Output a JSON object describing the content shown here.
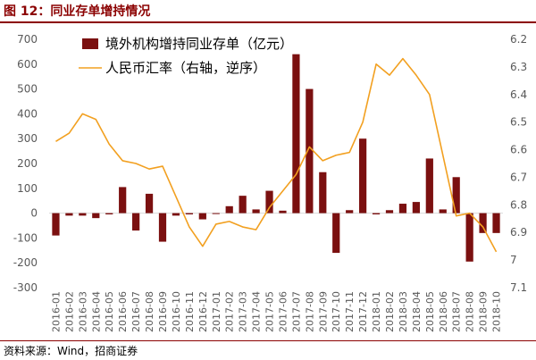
{
  "figure": {
    "title": "图 12：同业存单增持情况",
    "source": "资料来源：Wind，招商证券"
  },
  "colors": {
    "title": "#8b0000",
    "bar": "#7b1010",
    "line": "#f2a020",
    "axis_text": "#595959",
    "axis_line": "#d9d9d9"
  },
  "chart_data": {
    "type": "bar+line",
    "categories": [
      "2016-01",
      "2016-02",
      "2016-03",
      "2016-04",
      "2016-05",
      "2016-06",
      "2016-07",
      "2016-08",
      "2016-09",
      "2016-10",
      "2016-11",
      "2016-12",
      "2017-01",
      "2017-02",
      "2017-03",
      "2017-04",
      "2017-05",
      "2017-06",
      "2017-07",
      "2017-08",
      "2017-09",
      "2017-10",
      "2017-11",
      "2017-12",
      "2018-01",
      "2018-02",
      "2018-03",
      "2018-04",
      "2018-05",
      "2018-06",
      "2018-07",
      "2018-08",
      "2018-09",
      "2018-10"
    ],
    "series": [
      {
        "name": "境外机构增持同业存单（亿元）",
        "type": "bar",
        "axis": "left",
        "values": [
          -90,
          -10,
          -10,
          -20,
          -5,
          105,
          -70,
          78,
          -115,
          -10,
          -5,
          -25,
          -2,
          28,
          70,
          15,
          90,
          10,
          640,
          500,
          165,
          -160,
          12,
          300,
          -5,
          12,
          38,
          45,
          220,
          15,
          145,
          -195,
          -80,
          -80
        ]
      },
      {
        "name": "人民币汇率（右轴，逆序）",
        "type": "line",
        "axis": "right",
        "values": [
          6.57,
          6.54,
          6.47,
          6.49,
          6.58,
          6.64,
          6.65,
          6.67,
          6.66,
          6.77,
          6.88,
          6.95,
          6.87,
          6.86,
          6.88,
          6.89,
          6.81,
          6.75,
          6.69,
          6.59,
          6.64,
          6.62,
          6.61,
          6.5,
          6.29,
          6.33,
          6.27,
          6.33,
          6.4,
          6.62,
          6.84,
          6.83,
          6.88,
          6.97
        ]
      }
    ],
    "left_axis": {
      "ylim": [
        -300,
        700
      ],
      "ticks": [
        "700",
        "600",
        "500",
        "400",
        "300",
        "200",
        "100",
        "0",
        "-100",
        "-200",
        "-300"
      ]
    },
    "right_axis": {
      "ylim": [
        6.2,
        7.1
      ],
      "reversed": true,
      "ticks": [
        "6.2",
        "6.3",
        "6.4",
        "6.5",
        "6.6",
        "6.7",
        "6.8",
        "6.9",
        "7",
        "7.1"
      ]
    },
    "grid": false,
    "legend_position": "top-left"
  }
}
